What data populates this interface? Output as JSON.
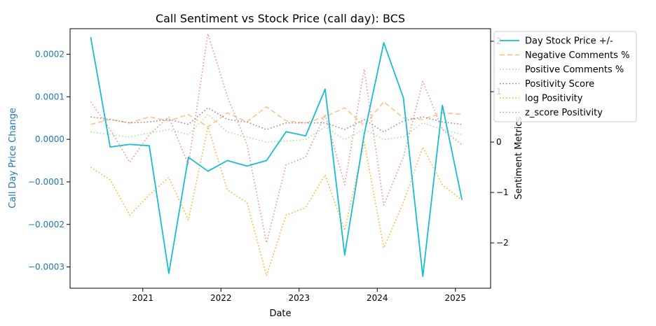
{
  "chart_data": {
    "type": "line",
    "title": "Call Sentiment vs Stock Price (call day): BCS",
    "xlabel": "Date",
    "ylabel_left": "Call Day Price Change",
    "ylabel_right": "Sentiment Metrics",
    "x_ticks": [
      "2021",
      "2022",
      "2023",
      "2024",
      "2025"
    ],
    "x": [
      "2020-05",
      "2020-08",
      "2020-11",
      "2021-02",
      "2021-05",
      "2021-08",
      "2021-11",
      "2022-02",
      "2022-05",
      "2022-08",
      "2022-11",
      "2023-02",
      "2023-05",
      "2023-08",
      "2023-11",
      "2024-02",
      "2024-05",
      "2024-08",
      "2024-11",
      "2025-02"
    ],
    "ylim_left": [
      -0.00035,
      0.00026
    ],
    "left_ticks": [
      "0.0002",
      "0.0001",
      "0.0000",
      "−0.0001",
      "−0.0002",
      "−0.0003"
    ],
    "left_tick_values": [
      0.0002,
      0.0001,
      0.0,
      -0.0001,
      -0.0002,
      -0.0003
    ],
    "ylim_right": [
      -2.9,
      2.25
    ],
    "right_ticks": [
      "2",
      "1",
      "0",
      "−1",
      "−2"
    ],
    "right_tick_values": [
      2,
      1,
      0,
      -1,
      -2
    ],
    "legend_position": "top-right (outside)",
    "grid": false,
    "series": [
      {
        "name": "Day Stock Price +/-",
        "axis": "left",
        "color": "#17becf",
        "style": "solid",
        "values": [
          0.00024,
          -1.8e-05,
          -1.2e-05,
          -1.5e-05,
          -0.000315,
          -4.2e-05,
          -7.5e-05,
          -5e-05,
          -6.3e-05,
          -5e-05,
          1.8e-05,
          8e-06,
          0.000118,
          -0.000272,
          1.2e-05,
          0.000227,
          9.8e-05,
          -0.000322,
          8e-05,
          -0.000142
        ]
      },
      {
        "name": "Negative Comments %",
        "axis": "right",
        "color": "#ffbb78",
        "style": "dashed",
        "values": [
          0.35,
          0.45,
          0.38,
          0.5,
          0.42,
          0.55,
          0.3,
          0.58,
          0.4,
          0.7,
          0.42,
          0.38,
          0.5,
          0.68,
          0.33,
          0.8,
          0.48,
          0.45,
          0.58,
          0.55
        ]
      },
      {
        "name": "Positive Comments %",
        "axis": "right",
        "color": "#98df8a",
        "style": "dotted",
        "values": [
          0.2,
          0.15,
          0.1,
          0.18,
          0.25,
          0.15,
          0.55,
          0.2,
          0.1,
          0.0,
          0.02,
          0.05,
          0.3,
          0.05,
          0.25,
          0.05,
          0.1,
          0.38,
          0.25,
          0.15
        ]
      },
      {
        "name": "Positivity Score",
        "axis": "right",
        "color": "#7f7f7f",
        "style": "dotted",
        "values": [
          0.5,
          0.45,
          0.38,
          0.4,
          0.45,
          0.35,
          0.68,
          0.45,
          0.4,
          0.25,
          0.38,
          0.38,
          0.38,
          0.25,
          0.45,
          0.2,
          0.42,
          0.5,
          0.4,
          0.35
        ]
      },
      {
        "name": "log Positivity",
        "axis": "right",
        "color": "#ffa500",
        "style": "dotted",
        "values": [
          -0.5,
          -0.75,
          -1.45,
          -1.05,
          -0.7,
          -1.55,
          0.3,
          -0.95,
          -1.2,
          -2.65,
          -1.45,
          -1.3,
          -0.65,
          -1.75,
          0.0,
          -2.1,
          -1.2,
          -0.1,
          -0.85,
          -1.15
        ]
      },
      {
        "name": "z_score Positivity",
        "axis": "right",
        "color": "#f08080",
        "style": "dotted",
        "values": [
          0.8,
          0.25,
          -0.4,
          0.15,
          0.5,
          -0.45,
          2.15,
          0.9,
          -0.05,
          -2.0,
          -0.45,
          -0.3,
          0.55,
          -0.85,
          1.45,
          -1.25,
          -0.3,
          1.2,
          0.25,
          -0.05
        ]
      }
    ]
  }
}
